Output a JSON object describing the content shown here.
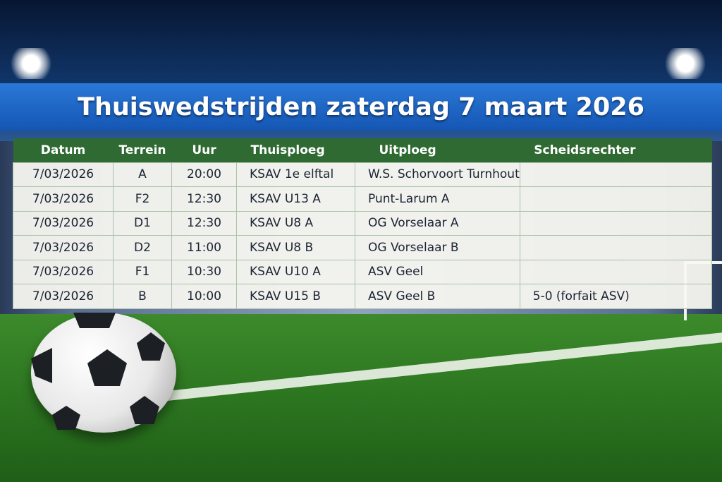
{
  "title": "Thuiswedstrijden zaterdag 7 maart 2026",
  "columns": [
    "Datum",
    "Terrein",
    "Uur",
    "Thuisploeg",
    "Uitploeg",
    "Scheidsrechter"
  ],
  "rows": [
    [
      "7/03/2026",
      "A",
      "20:00",
      "KSAV 1e elftal",
      "W.S. Schorvoort Turnhout",
      ""
    ],
    [
      "7/03/2026",
      "F2",
      "12:30",
      "KSAV U13 A",
      "Punt-Larum A",
      ""
    ],
    [
      "7/03/2026",
      "D1",
      "12:30",
      "KSAV U8 A",
      "OG Vorselaar A",
      ""
    ],
    [
      "7/03/2026",
      "D2",
      "11:00",
      "KSAV U8 B",
      "OG Vorselaar B",
      ""
    ],
    [
      "7/03/2026",
      "F1",
      "10:30",
      "KSAV U10 A",
      "ASV Geel",
      ""
    ],
    [
      "7/03/2026",
      "B",
      "10:00",
      "KSAV U15 B",
      "ASV Geel B",
      "5-0 (forfait ASV)"
    ]
  ],
  "colors": {
    "banner": "#1a66c8",
    "header": "#2e6a32"
  }
}
